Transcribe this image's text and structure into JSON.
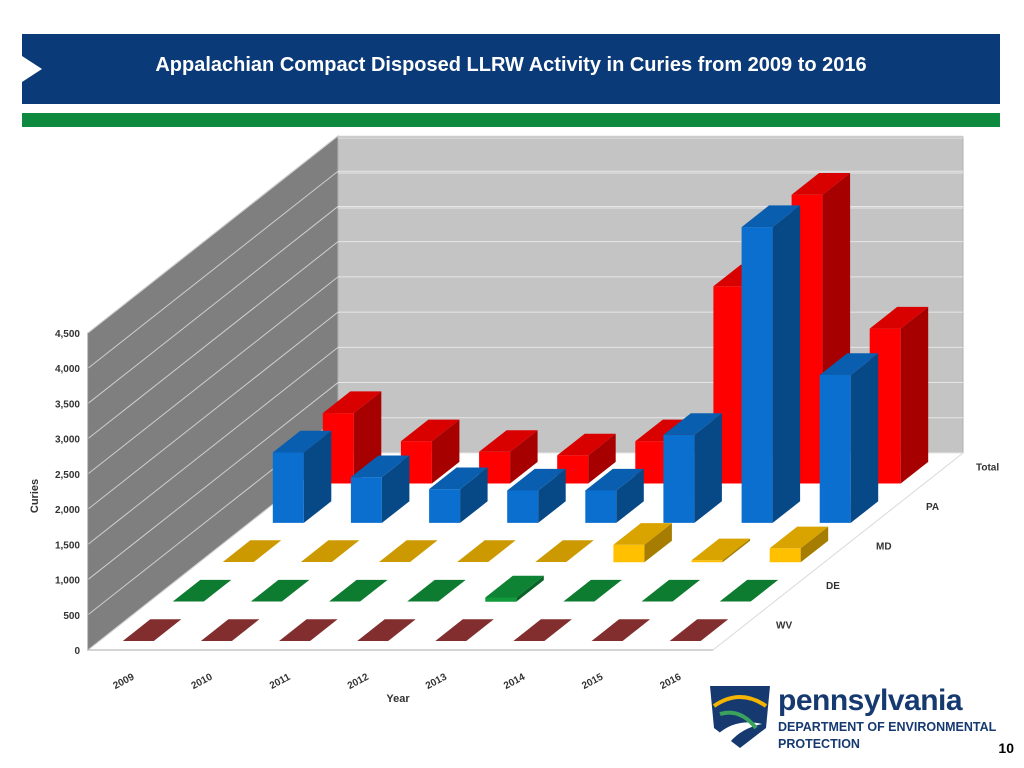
{
  "slide": {
    "title": "Appalachian Compact Disposed LLRW Activity in Curies from 2009 to 2016",
    "page_number": "10"
  },
  "logo": {
    "name": "pennsylvania",
    "line1": "DEPARTMENT OF ENVIRONMENTAL",
    "line2": "PROTECTION"
  },
  "colors": {
    "title_bg": "#0b3a78",
    "accent_bar": "#0e8a3e",
    "total": "#ff0000",
    "pa": "#0a6fcf",
    "md": "#ffc000",
    "de": "#109a3c",
    "wv": "#a3393a"
  },
  "chart_data": {
    "type": "bar",
    "title": "",
    "xlabel": "Year",
    "ylabel": "Curies",
    "ylim": [
      0,
      4500
    ],
    "yticks": [
      "0",
      "500",
      "1,000",
      "1,500",
      "2,000",
      "2,500",
      "3,000",
      "3,500",
      "4,000",
      "4,500"
    ],
    "categories": [
      "2009",
      "2010",
      "2011",
      "2012",
      "2013",
      "2014",
      "2015",
      "2016"
    ],
    "series": [
      {
        "name": "Total",
        "values": [
          1000,
          600,
          450,
          400,
          600,
          2800,
          4100,
          2200
        ]
      },
      {
        "name": "PA",
        "values": [
          1000,
          650,
          480,
          460,
          460,
          1250,
          4200,
          2100
        ]
      },
      {
        "name": "MD",
        "values": [
          5,
          5,
          5,
          5,
          5,
          250,
          30,
          200
        ]
      },
      {
        "name": "DE",
        "values": [
          3,
          3,
          3,
          3,
          60,
          3,
          3,
          3
        ]
      },
      {
        "name": "WV",
        "values": [
          2,
          2,
          2,
          2,
          2,
          2,
          2,
          2
        ]
      }
    ]
  }
}
